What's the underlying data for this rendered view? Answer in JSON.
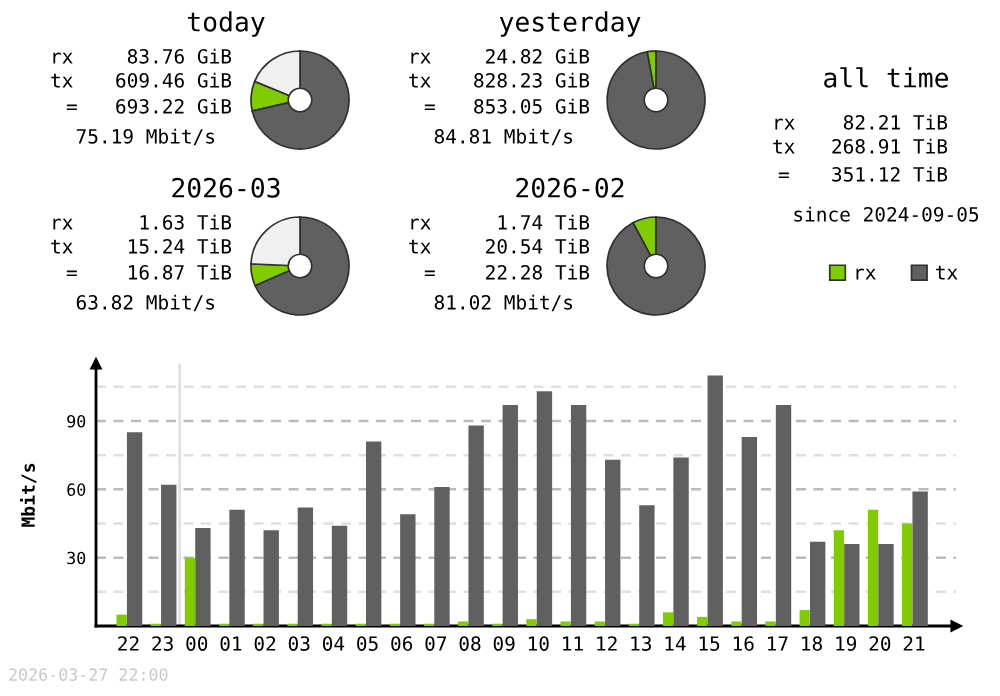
{
  "chart_data": [
    {
      "type": "donut",
      "title": "today",
      "categories": [
        null,
        null,
        null
      ],
      "values": [
        9.8,
        71.4,
        18.8
      ],
      "colors": [
        "#80cc00",
        "#606060",
        "#f0f0f0"
      ],
      "annotations": [
        "rx",
        "83.76 GiB",
        "tx",
        "609.46 GiB",
        "=",
        "693.22 GiB",
        "75.19 Mbit/s"
      ]
    },
    {
      "type": "donut",
      "title": "yesterday",
      "categories": [
        null,
        null
      ],
      "values": [
        2.9,
        97.1
      ],
      "colors": [
        "#80cc00",
        "#606060"
      ],
      "annotations": [
        "rx",
        "24.82 GiB",
        "tx",
        "828.23 GiB",
        "=",
        "853.05 GiB",
        "84.81 Mbit/s"
      ]
    },
    {
      "type": "other",
      "title": "all time",
      "annotations": [
        "rx",
        "82.21 TiB",
        "tx",
        "268.91 TiB",
        "=",
        "351.12 TiB",
        "since 2024-09-05"
      ]
    },
    {
      "type": "donut",
      "title": "2026-03",
      "categories": [
        null,
        null,
        null
      ],
      "values": [
        7.3,
        68.4,
        24.3
      ],
      "colors": [
        "#80cc00",
        "#606060",
        "#f0f0f0"
      ],
      "annotations": [
        "rx",
        "1.63 TiB",
        "tx",
        "15.24 TiB",
        "=",
        "16.87 TiB",
        "63.82 Mbit/s"
      ]
    },
    {
      "type": "donut",
      "title": "2026-02",
      "categories": [
        null,
        null
      ],
      "values": [
        7.8,
        92.2
      ],
      "colors": [
        "#80cc00",
        "#606060"
      ],
      "annotations": [
        "rx",
        "1.74 TiB",
        "tx",
        "20.54 TiB",
        "=",
        "22.28 TiB",
        "81.02 Mbit/s"
      ]
    },
    {
      "type": "bar",
      "ylabel": "Mbit/s",
      "categories": [
        "22",
        "23",
        "00",
        "01",
        "02",
        "03",
        "04",
        "05",
        "06",
        "07",
        "08",
        "09",
        "10",
        "11",
        "12",
        "13",
        "14",
        "15",
        "16",
        "17",
        "18",
        "19",
        "20",
        "21"
      ],
      "series": [
        {
          "name": "rx",
          "color": "#80cc00",
          "values": [
            5,
            1,
            30,
            1,
            1,
            1,
            1,
            1,
            1,
            1,
            2,
            1,
            3,
            2,
            2,
            1,
            6,
            4,
            2,
            2,
            7,
            42,
            51,
            45
          ]
        },
        {
          "name": "tx",
          "color": "#606060",
          "values": [
            85,
            62,
            43,
            51,
            42,
            52,
            44,
            81,
            49,
            61,
            88,
            97,
            103,
            97,
            73,
            53,
            74,
            110,
            83,
            97,
            37,
            36,
            36,
            59
          ]
        }
      ],
      "ylim": [
        0,
        115
      ],
      "yticks": [
        {
          "value": 15,
          "label": null
        },
        30,
        {
          "value": 45,
          "label": null
        },
        60,
        {
          "value": 75,
          "label": null
        },
        90,
        {
          "value": 105,
          "label": null
        }
      ],
      "grid": "y",
      "legend": "right",
      "ref_lines": [
        {
          "axis": "x",
          "value": "00",
          "color": "#e0e0e0"
        }
      ],
      "annotations": [
        "2026-03-27 22:00"
      ]
    }
  ]
}
